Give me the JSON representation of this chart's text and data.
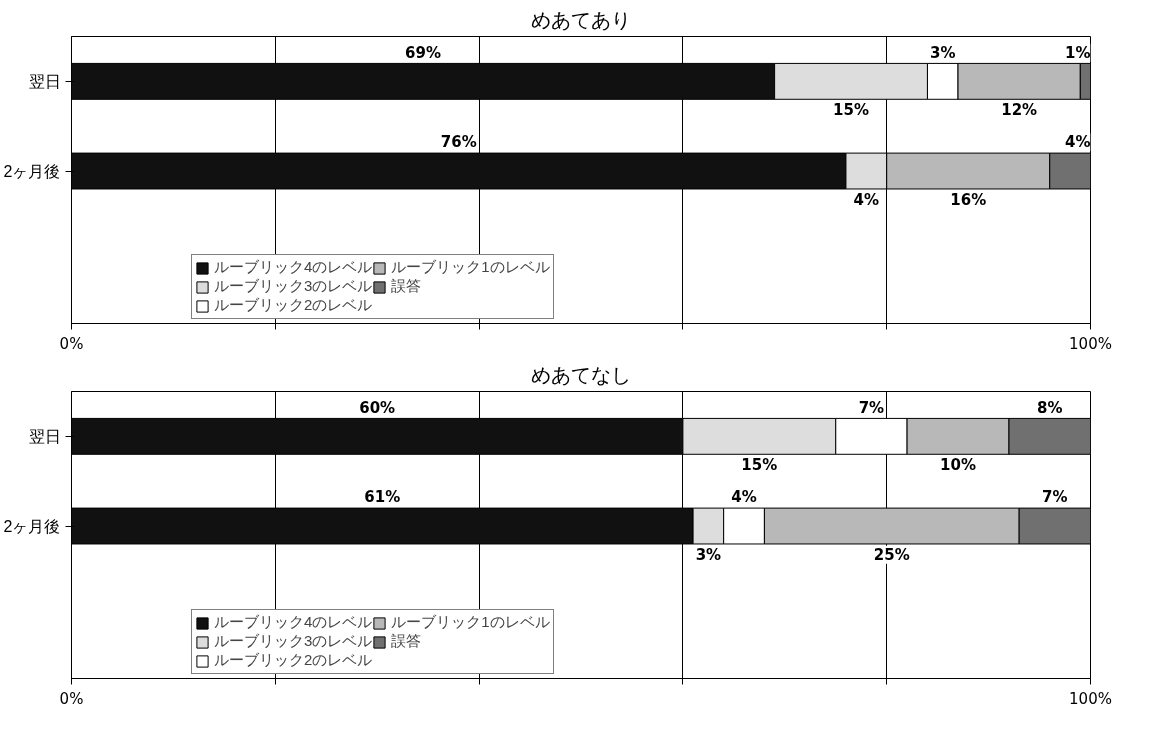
{
  "chart_data": [
    {
      "type": "bar",
      "title": "めあてあり",
      "orientation": "horizontal",
      "stacked": true,
      "categories": [
        "翌日",
        "2ヶ月後"
      ],
      "xlim": [
        0,
        100
      ],
      "xticks": [
        {
          "value": 0,
          "label": "0%"
        },
        {
          "value": 20,
          "label": null
        },
        {
          "value": 40,
          "label": null
        },
        {
          "value": 60,
          "label": null
        },
        {
          "value": 80,
          "label": null
        },
        {
          "value": 100,
          "label": "100%"
        }
      ],
      "grid": "x",
      "legend": "bottom",
      "series": [
        {
          "name": "ルーブリック4のレベル",
          "color": "#111111",
          "values": [
            69,
            76
          ],
          "value_labels": [
            "69%",
            "76%"
          ]
        },
        {
          "name": "ルーブリック3のレベル",
          "color": "#dddddd",
          "values": [
            15,
            4
          ],
          "value_labels": [
            "15%",
            "4%"
          ]
        },
        {
          "name": "ルーブリック2のレベル",
          "color": "#ffffff",
          "values": [
            3,
            0
          ],
          "value_labels": [
            "3%",
            null
          ]
        },
        {
          "name": "ルーブリック1のレベル",
          "color": "#b8b8b8",
          "values": [
            12,
            16
          ],
          "value_labels": [
            "12%",
            "16%"
          ]
        },
        {
          "name": "誤答",
          "color": "#707070",
          "values": [
            1,
            4
          ],
          "value_labels": [
            "1%",
            "4%"
          ]
        }
      ]
    },
    {
      "type": "bar",
      "title": "めあてなし",
      "orientation": "horizontal",
      "stacked": true,
      "categories": [
        "翌日",
        "2ヶ月後"
      ],
      "xlim": [
        0,
        100
      ],
      "xticks": [
        {
          "value": 0,
          "label": "0%"
        },
        {
          "value": 20,
          "label": null
        },
        {
          "value": 40,
          "label": null
        },
        {
          "value": 60,
          "label": null
        },
        {
          "value": 80,
          "label": null
        },
        {
          "value": 100,
          "label": "100%"
        }
      ],
      "grid": "x",
      "legend": "bottom",
      "series": [
        {
          "name": "ルーブリック4のレベル",
          "color": "#111111",
          "values": [
            60,
            61
          ],
          "value_labels": [
            "60%",
            "61%"
          ]
        },
        {
          "name": "ルーブリック3のレベル",
          "color": "#dddddd",
          "values": [
            15,
            3
          ],
          "value_labels": [
            "15%",
            "3%"
          ]
        },
        {
          "name": "ルーブリック2のレベル",
          "color": "#ffffff",
          "values": [
            7,
            4
          ],
          "value_labels": [
            "7%",
            "4%"
          ]
        },
        {
          "name": "ルーブリック1のレベル",
          "color": "#b8b8b8",
          "values": [
            10,
            25
          ],
          "value_labels": [
            "10%",
            "25%"
          ]
        },
        {
          "name": "誤答",
          "color": "#707070",
          "values": [
            8,
            7
          ],
          "value_labels": [
            "8%",
            "7%"
          ]
        }
      ]
    }
  ]
}
